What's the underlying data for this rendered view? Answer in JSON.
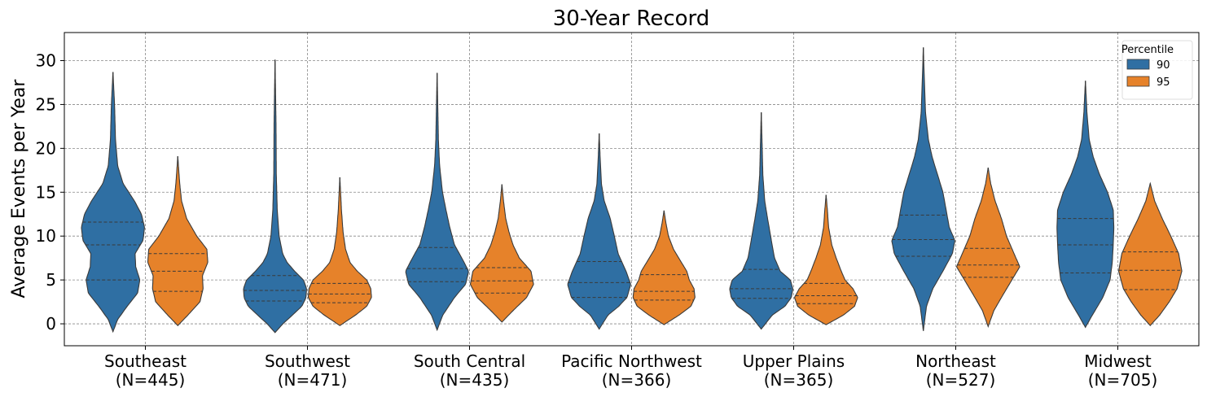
{
  "chart_data": {
    "type": "violin",
    "title": "30-Year Record",
    "xlabel": "",
    "ylabel": "Average Events per Year",
    "ylim": [
      -2.5,
      33.2
    ],
    "yticks": [
      0,
      5,
      10,
      15,
      20,
      25,
      30
    ],
    "grid": true,
    "legend": {
      "title": "Percentile",
      "placement": "top-right",
      "entries": [
        {
          "name": "90",
          "color": "#2f6fa3"
        },
        {
          "name": "95",
          "color": "#e6822a"
        }
      ]
    },
    "categories": [
      "Southeast\n(N=445)",
      "Southwest\n(N=471)",
      "South Central\n(N=435)",
      "Pacific Northwest\n(N=366)",
      "Upper Plains\n(N=365)",
      "Northeast\n(N=527)",
      "Midwest\n(N=705)"
    ],
    "series": [
      {
        "name": "90",
        "color": "#2f6fa3",
        "violins": [
          {
            "min": -0.9,
            "max": 28.7,
            "q1": 5.0,
            "median": 9.0,
            "q3": 11.6,
            "profile": [
              [
                -0.9,
                0
              ],
              [
                0.5,
                0.15
              ],
              [
                2,
                0.45
              ],
              [
                3.5,
                0.78
              ],
              [
                5,
                0.85
              ],
              [
                6.5,
                0.72
              ],
              [
                8,
                0.7
              ],
              [
                9.5,
                0.95
              ],
              [
                11,
                1.0
              ],
              [
                12.5,
                0.9
              ],
              [
                14,
                0.68
              ],
              [
                16,
                0.32
              ],
              [
                18,
                0.15
              ],
              [
                21,
                0.08
              ],
              [
                25,
                0.05
              ],
              [
                28.7,
                0
              ]
            ]
          },
          {
            "min": -1.0,
            "max": 30.1,
            "q1": 2.6,
            "median": 3.8,
            "q3": 5.5,
            "profile": [
              [
                -1,
                0
              ],
              [
                0,
                0.25
              ],
              [
                1,
                0.55
              ],
              [
                2,
                0.85
              ],
              [
                3,
                0.98
              ],
              [
                4,
                1.0
              ],
              [
                5,
                0.9
              ],
              [
                6,
                0.62
              ],
              [
                7,
                0.38
              ],
              [
                8,
                0.24
              ],
              [
                10,
                0.13
              ],
              [
                13,
                0.07
              ],
              [
                17,
                0.04
              ],
              [
                23,
                0.03
              ],
              [
                30.1,
                0
              ]
            ]
          },
          {
            "min": -0.7,
            "max": 28.6,
            "q1": 4.8,
            "median": 6.3,
            "q3": 8.7,
            "profile": [
              [
                -0.7,
                0
              ],
              [
                1,
                0.18
              ],
              [
                3,
                0.55
              ],
              [
                4.5,
                0.9
              ],
              [
                6,
                1.0
              ],
              [
                7.5,
                0.78
              ],
              [
                9,
                0.55
              ],
              [
                11,
                0.4
              ],
              [
                13,
                0.28
              ],
              [
                15,
                0.17
              ],
              [
                18,
                0.08
              ],
              [
                21,
                0.04
              ],
              [
                25,
                0.02
              ],
              [
                28.6,
                0
              ]
            ]
          },
          {
            "min": -0.6,
            "max": 21.7,
            "q1": 3.0,
            "median": 4.7,
            "q3": 7.1,
            "profile": [
              [
                -0.6,
                0
              ],
              [
                1,
                0.28
              ],
              [
                2,
                0.62
              ],
              [
                3,
                0.88
              ],
              [
                4.5,
                1.0
              ],
              [
                6,
                0.85
              ],
              [
                8,
                0.6
              ],
              [
                10,
                0.48
              ],
              [
                12,
                0.35
              ],
              [
                14,
                0.16
              ],
              [
                16,
                0.07
              ],
              [
                19,
                0.03
              ],
              [
                21.7,
                0
              ]
            ]
          },
          {
            "min": -0.6,
            "max": 24.1,
            "q1": 2.9,
            "median": 4.0,
            "q3": 6.2,
            "profile": [
              [
                -0.6,
                0
              ],
              [
                1,
                0.35
              ],
              [
                2,
                0.75
              ],
              [
                3,
                0.95
              ],
              [
                4,
                1.0
              ],
              [
                5,
                0.92
              ],
              [
                6,
                0.6
              ],
              [
                7.5,
                0.42
              ],
              [
                9.5,
                0.32
              ],
              [
                12,
                0.2
              ],
              [
                14,
                0.11
              ],
              [
                17,
                0.05
              ],
              [
                20,
                0.03
              ],
              [
                24.1,
                0
              ]
            ]
          },
          {
            "min": -0.8,
            "max": 31.5,
            "q1": 7.7,
            "median": 9.6,
            "q3": 12.4,
            "profile": [
              [
                -0.8,
                0
              ],
              [
                2,
                0.1
              ],
              [
                4,
                0.3
              ],
              [
                6,
                0.62
              ],
              [
                8,
                0.92
              ],
              [
                9.5,
                1.0
              ],
              [
                11,
                0.82
              ],
              [
                13,
                0.72
              ],
              [
                15,
                0.62
              ],
              [
                17,
                0.45
              ],
              [
                19,
                0.28
              ],
              [
                21,
                0.16
              ],
              [
                24,
                0.07
              ],
              [
                28,
                0.03
              ],
              [
                31.5,
                0
              ]
            ]
          },
          {
            "min": -0.4,
            "max": 27.7,
            "q1": 5.8,
            "median": 9.0,
            "q3": 12.0,
            "profile": [
              [
                -0.4,
                0
              ],
              [
                1,
                0.22
              ],
              [
                3,
                0.55
              ],
              [
                5,
                0.78
              ],
              [
                7,
                0.85
              ],
              [
                9,
                0.88
              ],
              [
                11,
                0.9
              ],
              [
                13,
                0.88
              ],
              [
                15,
                0.7
              ],
              [
                17,
                0.45
              ],
              [
                19,
                0.25
              ],
              [
                21,
                0.12
              ],
              [
                24,
                0.05
              ],
              [
                27.7,
                0
              ]
            ]
          }
        ]
      },
      {
        "name": "95",
        "color": "#e6822a",
        "violins": [
          {
            "min": -0.2,
            "max": 19.1,
            "q1": 3.7,
            "median": 6.0,
            "q3": 8.0,
            "profile": [
              [
                -0.2,
                0
              ],
              [
                1,
                0.32
              ],
              [
                2.5,
                0.7
              ],
              [
                4,
                0.8
              ],
              [
                5.5,
                0.78
              ],
              [
                7,
                0.95
              ],
              [
                8.5,
                0.92
              ],
              [
                10,
                0.6
              ],
              [
                12,
                0.28
              ],
              [
                14,
                0.12
              ],
              [
                16,
                0.06
              ],
              [
                19.1,
                0
              ]
            ]
          },
          {
            "min": -0.2,
            "max": 16.7,
            "q1": 2.4,
            "median": 3.4,
            "q3": 4.6,
            "profile": [
              [
                -0.2,
                0
              ],
              [
                1,
                0.5
              ],
              [
                2,
                0.85
              ],
              [
                3,
                1.0
              ],
              [
                4,
                0.98
              ],
              [
                5,
                0.85
              ],
              [
                6,
                0.55
              ],
              [
                7,
                0.32
              ],
              [
                8.5,
                0.18
              ],
              [
                10.5,
                0.1
              ],
              [
                13,
                0.05
              ],
              [
                16.7,
                0
              ]
            ]
          },
          {
            "min": 0.2,
            "max": 15.9,
            "q1": 3.5,
            "median": 4.9,
            "q3": 6.4,
            "profile": [
              [
                0.2,
                0
              ],
              [
                1.5,
                0.35
              ],
              [
                3,
                0.78
              ],
              [
                4.5,
                1.0
              ],
              [
                6,
                0.92
              ],
              [
                7.5,
                0.55
              ],
              [
                9,
                0.35
              ],
              [
                10.5,
                0.22
              ],
              [
                12,
                0.12
              ],
              [
                14,
                0.05
              ],
              [
                15.9,
                0
              ]
            ]
          },
          {
            "min": -0.1,
            "max": 12.9,
            "q1": 2.7,
            "median": 3.7,
            "q3": 5.6,
            "profile": [
              [
                -0.1,
                0
              ],
              [
                1,
                0.48
              ],
              [
                2,
                0.85
              ],
              [
                3,
                0.98
              ],
              [
                4,
                0.95
              ],
              [
                5,
                0.8
              ],
              [
                6,
                0.72
              ],
              [
                7,
                0.55
              ],
              [
                8.5,
                0.3
              ],
              [
                10,
                0.14
              ],
              [
                11.5,
                0.06
              ],
              [
                12.9,
                0
              ]
            ]
          },
          {
            "min": -0.1,
            "max": 14.7,
            "q1": 2.3,
            "median": 3.2,
            "q3": 4.6,
            "profile": [
              [
                -0.1,
                0
              ],
              [
                1,
                0.55
              ],
              [
                2,
                0.9
              ],
              [
                3,
                1.0
              ],
              [
                4,
                0.85
              ],
              [
                5,
                0.6
              ],
              [
                6,
                0.48
              ],
              [
                7.5,
                0.32
              ],
              [
                9,
                0.18
              ],
              [
                11,
                0.08
              ],
              [
                13,
                0.04
              ],
              [
                14.7,
                0
              ]
            ]
          },
          {
            "min": -0.3,
            "max": 17.8,
            "q1": 5.3,
            "median": 6.7,
            "q3": 8.6,
            "profile": [
              [
                -0.3,
                0
              ],
              [
                1.5,
                0.18
              ],
              [
                3,
                0.42
              ],
              [
                5,
                0.75
              ],
              [
                6.5,
                1.0
              ],
              [
                8,
                0.82
              ],
              [
                10,
                0.58
              ],
              [
                12,
                0.42
              ],
              [
                14,
                0.22
              ],
              [
                16,
                0.08
              ],
              [
                17.8,
                0
              ]
            ]
          },
          {
            "min": -0.2,
            "max": 16.0,
            "q1": 3.9,
            "median": 6.1,
            "q3": 8.2,
            "profile": [
              [
                -0.2,
                0
              ],
              [
                1,
                0.3
              ],
              [
                2.5,
                0.6
              ],
              [
                4,
                0.85
              ],
              [
                6,
                1.0
              ],
              [
                8,
                0.9
              ],
              [
                10,
                0.65
              ],
              [
                12,
                0.38
              ],
              [
                14,
                0.14
              ],
              [
                16,
                0
              ]
            ]
          }
        ]
      }
    ]
  }
}
